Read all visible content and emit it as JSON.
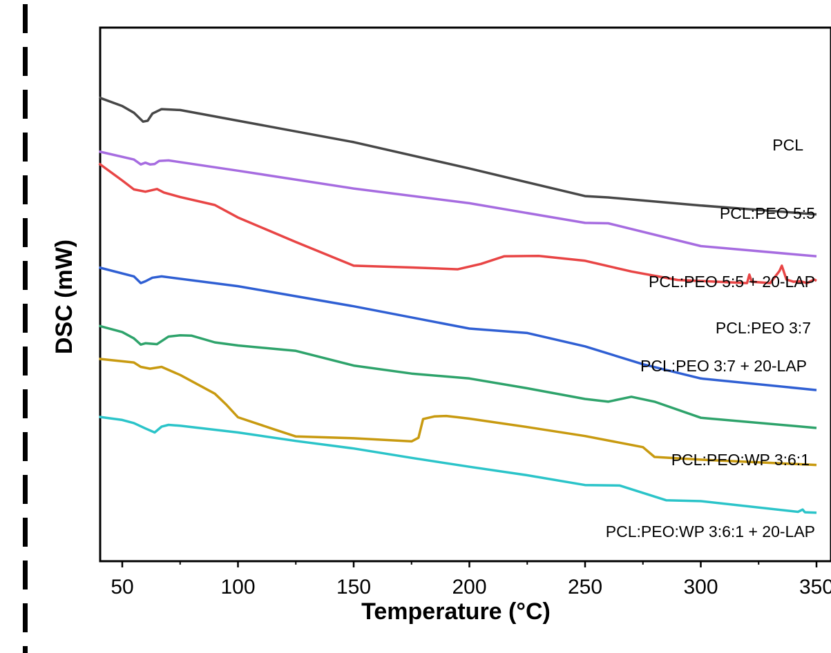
{
  "chart_data": {
    "type": "line",
    "title": "",
    "xlabel": "Temperature (°C)",
    "ylabel": "DSC (mW)",
    "xlim": [
      40,
      350
    ],
    "ylim": [
      0,
      100
    ],
    "y_ticks_shown": false,
    "grid": false,
    "legend": "inline labels at right",
    "x_ticks": [
      50,
      100,
      150,
      200,
      250,
      300,
      350
    ],
    "x_tick_labels": [
      "50",
      "100",
      "150",
      "200",
      "250",
      "300",
      "350"
    ],
    "series": [
      {
        "name": "PCL",
        "color": "#474747",
        "points": [
          [
            40,
            93.6
          ],
          [
            50,
            91.7
          ],
          [
            55,
            90.2
          ],
          [
            59,
            88.2
          ],
          [
            61,
            88.4
          ],
          [
            63,
            90.0
          ],
          [
            67,
            91.0
          ],
          [
            75,
            90.8
          ],
          [
            100,
            88.4
          ],
          [
            150,
            83.6
          ],
          [
            200,
            77.7
          ],
          [
            250,
            71.5
          ],
          [
            260,
            71.2
          ],
          [
            300,
            69.4
          ],
          [
            350,
            67.4
          ]
        ]
      },
      {
        "name": "PCL:PEO 5:5",
        "color": "#a66ce0",
        "points": [
          [
            40,
            81.5
          ],
          [
            55,
            79.7
          ],
          [
            58,
            78.6
          ],
          [
            60,
            79.0
          ],
          [
            62,
            78.6
          ],
          [
            64,
            78.7
          ],
          [
            66,
            79.4
          ],
          [
            70,
            79.5
          ],
          [
            100,
            77.2
          ],
          [
            150,
            73.2
          ],
          [
            200,
            69.9
          ],
          [
            250,
            65.5
          ],
          [
            260,
            65.4
          ],
          [
            300,
            60.3
          ],
          [
            350,
            58.0
          ]
        ]
      },
      {
        "name": "PCL:PEO 5:5 + 20-LAP",
        "color": "#e84545",
        "points": [
          [
            40,
            78.8
          ],
          [
            50,
            75.0
          ],
          [
            55,
            73.0
          ],
          [
            60,
            72.5
          ],
          [
            65,
            73.1
          ],
          [
            68,
            72.3
          ],
          [
            75,
            71.3
          ],
          [
            90,
            69.5
          ],
          [
            100,
            66.7
          ],
          [
            125,
            61.2
          ],
          [
            150,
            55.9
          ],
          [
            175,
            55.5
          ],
          [
            195,
            55.1
          ],
          [
            205,
            56.3
          ],
          [
            215,
            58.0
          ],
          [
            230,
            58.1
          ],
          [
            250,
            57.0
          ],
          [
            270,
            54.6
          ],
          [
            290,
            52.7
          ],
          [
            320,
            52.0
          ],
          [
            321,
            53.9
          ],
          [
            322,
            52.3
          ],
          [
            330,
            52.0
          ],
          [
            334,
            54.7
          ],
          [
            335,
            55.9
          ],
          [
            337,
            52.8
          ],
          [
            340,
            52.3
          ],
          [
            343,
            52.4
          ],
          [
            346,
            52.0
          ],
          [
            349,
            52.8
          ],
          [
            350,
            52.5
          ]
        ]
      },
      {
        "name": "PCL:PEO 3:7",
        "color": "#2f5fd3",
        "points": [
          [
            40,
            55.5
          ],
          [
            55,
            53.5
          ],
          [
            58,
            52.0
          ],
          [
            60,
            52.4
          ],
          [
            63,
            53.2
          ],
          [
            67,
            53.5
          ],
          [
            100,
            51.3
          ],
          [
            150,
            46.8
          ],
          [
            200,
            41.8
          ],
          [
            225,
            40.8
          ],
          [
            250,
            37.8
          ],
          [
            275,
            33.8
          ],
          [
            300,
            30.6
          ],
          [
            350,
            28.0
          ]
        ]
      },
      {
        "name": "PCL:PEO 3:7 + 20-LAP",
        "color": "#2ea36b",
        "points": [
          [
            40,
            42.4
          ],
          [
            50,
            41.0
          ],
          [
            55,
            39.6
          ],
          [
            58,
            38.2
          ],
          [
            60,
            38.5
          ],
          [
            65,
            38.3
          ],
          [
            70,
            40.0
          ],
          [
            75,
            40.3
          ],
          [
            80,
            40.2
          ],
          [
            90,
            38.7
          ],
          [
            100,
            38.0
          ],
          [
            125,
            36.8
          ],
          [
            150,
            33.5
          ],
          [
            175,
            31.7
          ],
          [
            200,
            30.6
          ],
          [
            225,
            28.4
          ],
          [
            250,
            26.0
          ],
          [
            260,
            25.4
          ],
          [
            270,
            26.5
          ],
          [
            280,
            25.4
          ],
          [
            300,
            21.8
          ],
          [
            350,
            19.5
          ]
        ]
      },
      {
        "name": "PCL:PEO:WP 3:6:1",
        "color": "#c89a10",
        "points": [
          [
            40,
            35.0
          ],
          [
            55,
            34.2
          ],
          [
            58,
            33.2
          ],
          [
            62,
            32.8
          ],
          [
            67,
            33.2
          ],
          [
            75,
            31.4
          ],
          [
            90,
            27.2
          ],
          [
            95,
            24.7
          ],
          [
            100,
            21.9
          ],
          [
            115,
            19.3
          ],
          [
            125,
            17.6
          ],
          [
            150,
            17.2
          ],
          [
            175,
            16.5
          ],
          [
            178,
            17.3
          ],
          [
            180,
            21.5
          ],
          [
            185,
            22.1
          ],
          [
            190,
            22.2
          ],
          [
            195,
            21.9
          ],
          [
            200,
            21.6
          ],
          [
            225,
            19.7
          ],
          [
            250,
            17.7
          ],
          [
            275,
            15.2
          ],
          [
            280,
            13.0
          ],
          [
            300,
            12.4
          ],
          [
            350,
            11.2
          ]
        ]
      },
      {
        "name": "PCL:PEO:WP 3:6:1 + 20-LAP",
        "color": "#2bc4c9",
        "points": [
          [
            40,
            22.0
          ],
          [
            50,
            21.3
          ],
          [
            55,
            20.6
          ],
          [
            60,
            19.4
          ],
          [
            64,
            18.5
          ],
          [
            67,
            19.8
          ],
          [
            70,
            20.2
          ],
          [
            75,
            20.0
          ],
          [
            100,
            18.5
          ],
          [
            125,
            16.6
          ],
          [
            150,
            14.9
          ],
          [
            175,
            12.8
          ],
          [
            200,
            10.8
          ],
          [
            225,
            8.9
          ],
          [
            250,
            6.7
          ],
          [
            265,
            6.6
          ],
          [
            285,
            3.3
          ],
          [
            300,
            3.1
          ],
          [
            342,
            0.7
          ],
          [
            344,
            1.2
          ],
          [
            345,
            0.6
          ],
          [
            350,
            0.5
          ]
        ]
      }
    ]
  }
}
